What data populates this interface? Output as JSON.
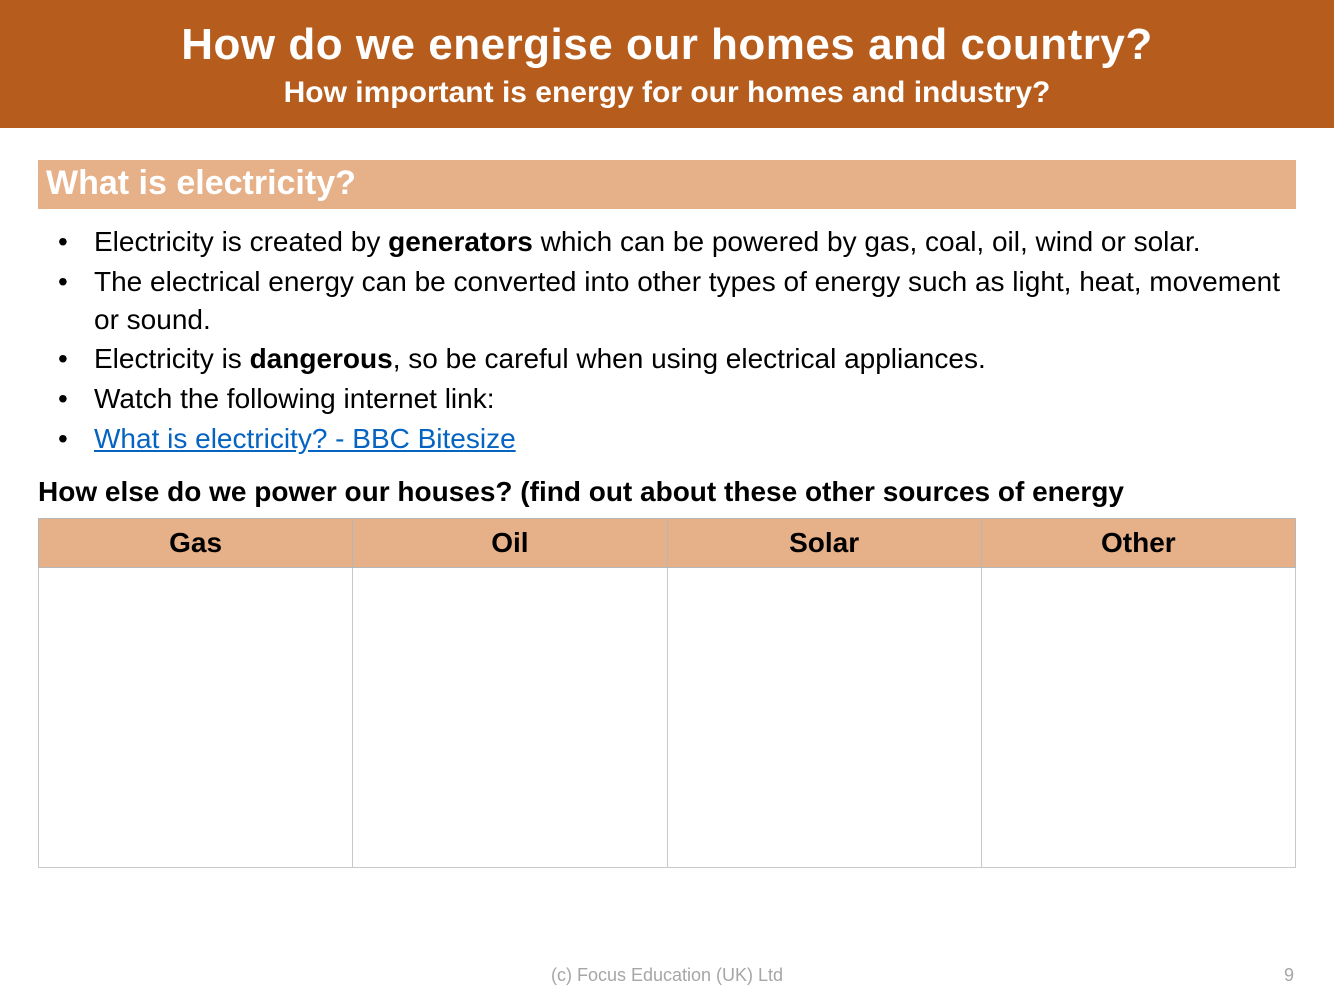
{
  "banner": {
    "title": "How do we energise our homes and country?",
    "subtitle": "How important is energy for our homes and industry?",
    "bg_color": "#b65c1c",
    "text_color": "#ffffff"
  },
  "section": {
    "heading": "What is electricity?",
    "heading_bg": "#e6b089",
    "heading_color": "#ffffff"
  },
  "bullets": {
    "b1_pre": "Electricity is created by ",
    "b1_bold": "generators",
    "b1_post": " which can be powered by gas, coal, oil, wind or solar.",
    "b2": "The electrical energy can be converted into other types of energy such as light, heat, movement or sound.",
    "b3_pre": "Electricity is ",
    "b3_bold": "dangerous",
    "b3_post": ", so be careful when using electrical appliances.",
    "b4": "Watch the following internet link:",
    "b5_link": "What is electricity? - BBC Bitesize"
  },
  "subhead": "How else do we power our houses?  (find out about these other sources of energy",
  "table": {
    "headers": [
      "Gas",
      "Oil",
      "Solar",
      "Other"
    ],
    "header_bg": "#e6b089",
    "border_color": "#c9c9c9",
    "cells": [
      "",
      "",
      "",
      ""
    ]
  },
  "footer": {
    "copyright": "(c) Focus Education (UK) Ltd",
    "page": "9",
    "color": "#a6a6a6"
  },
  "typography": {
    "title_fontsize": 44,
    "subtitle_fontsize": 30,
    "section_fontsize": 34,
    "body_fontsize": 28,
    "footer_fontsize": 18
  },
  "colors": {
    "link": "#0563c1",
    "body_text": "#000000",
    "slide_bg": "#ffffff"
  }
}
